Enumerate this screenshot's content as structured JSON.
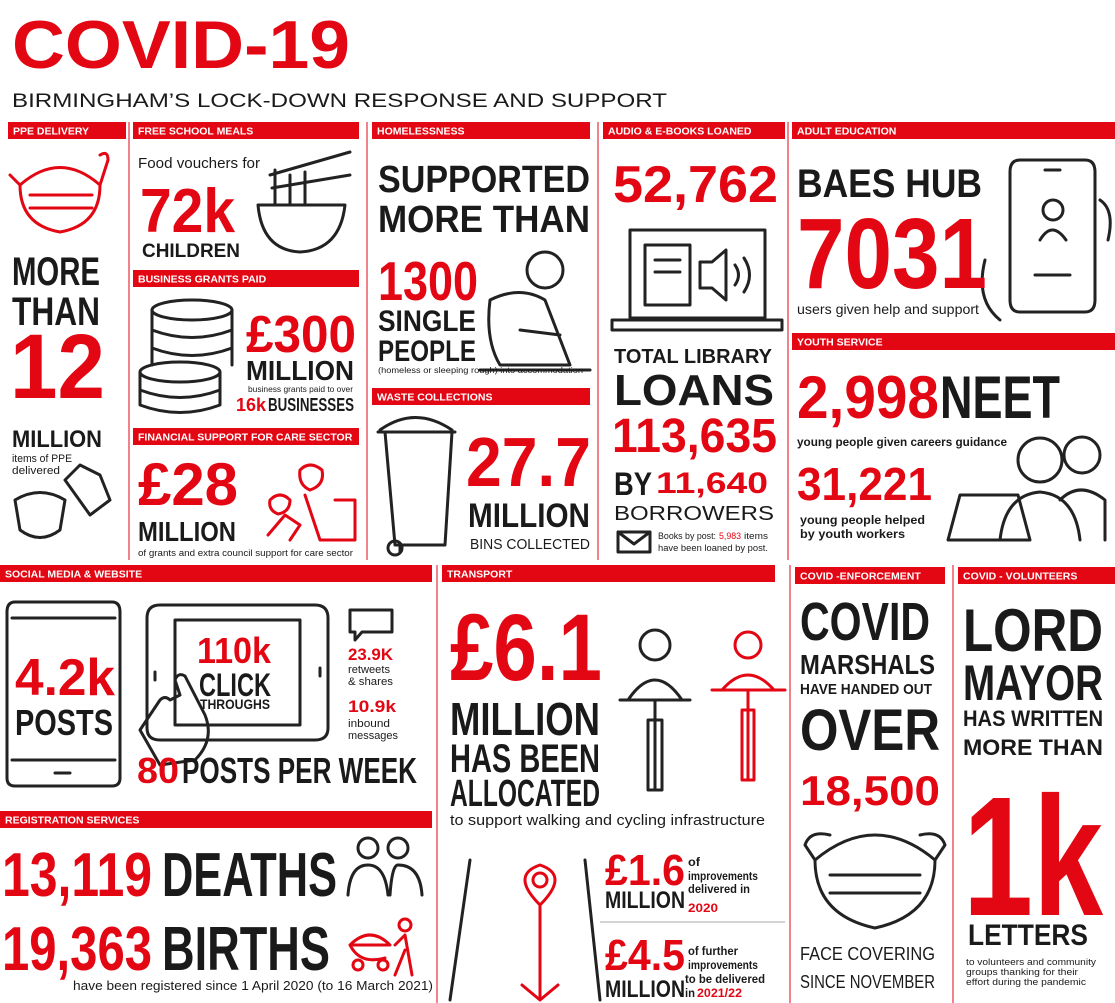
{
  "title": "COVID-19",
  "subtitle": "BIRMINGHAM’S LOCK-DOWN RESPONSE AND SUPPORT",
  "ppe": {
    "header": "PPE DELIVERY",
    "line1": "MORE",
    "line2": "THAN",
    "number": "12",
    "unit": "MILLION",
    "caption1": "items of PPE",
    "caption2": "delivered"
  },
  "school_meals": {
    "header": "FREE SCHOOL MEALS",
    "intro": "Food vouchers for",
    "number": "72k",
    "unit": "CHILDREN"
  },
  "business_grants": {
    "header": "BUSINESS GRANTS PAID",
    "number": "£300",
    "unit": "MILLION",
    "caption": "business grants paid to over",
    "count": "16k",
    "count_label": "BUSINESSES"
  },
  "care_sector": {
    "header": "FINANCIAL SUPPORT FOR CARE SECTOR",
    "number": "£28",
    "unit": "MILLION",
    "caption": "of grants and extra council support for care sector"
  },
  "homelessness": {
    "header": "HOMELESSNESS",
    "line1": "SUPPORTED",
    "line2": "MORE THAN",
    "number": "1300",
    "line3": "SINGLE",
    "line4": "PEOPLE",
    "caption": "(homeless or sleeping rough) into accommodation"
  },
  "waste": {
    "header": "WASTE COLLECTIONS",
    "number": "27.7",
    "unit": "MILLION",
    "caption": "BINS COLLECTED"
  },
  "library": {
    "header": "AUDIO & E-BOOKS LOANED",
    "number": "52,762",
    "label1": "TOTAL LIBRARY",
    "label2": "LOANS",
    "total": "113,635",
    "by": "BY",
    "borrowers": "11,640",
    "borrowers_label": "BORROWERS",
    "note1": "Books by post:",
    "note_number": "5,983",
    "note2": "items",
    "note3": "have been loaned by post."
  },
  "adult_education": {
    "header": "ADULT EDUCATION",
    "line1": "BAES HUB",
    "number": "7031",
    "caption": "users given help and support"
  },
  "youth": {
    "header": "YOUTH SERVICE",
    "number1": "2,998",
    "label1": "NEET",
    "caption1": "young people given careers guidance",
    "number2": "31,221",
    "caption2a": "young people helped",
    "caption2b": "by youth workers"
  },
  "social": {
    "header": "SOCIAL MEDIA & WEBSITE",
    "posts": "4.2k",
    "posts_label": "POSTS",
    "clicks": "110k",
    "clicks_label1": "CLICK",
    "clicks_label2": "THROUGHS",
    "retweets": "23.9K",
    "retweets_label1": "retweets",
    "retweets_label2": "& shares",
    "inbound": "10.9k",
    "inbound_label1": "inbound",
    "inbound_label2": "messages",
    "weekly": "80",
    "weekly_label": "POSTS PER WEEK"
  },
  "registration": {
    "header": "REGISTRATION SERVICES",
    "deaths": "13,119",
    "deaths_label": "DEATHS",
    "births": "19,363",
    "births_label": "BIRTHS",
    "caption": "have been registered since 1 April 2020 (to 16 March 2021)"
  },
  "transport": {
    "header": "TRANSPORT",
    "number": "£6.1",
    "line1": "MILLION",
    "line2": "HAS BEEN",
    "line3": "ALLOCATED",
    "caption": "to support walking and cycling infrastructure",
    "item1": {
      "number": "£1.6",
      "unit": "MILLION",
      "text1": "of",
      "text2": "improvements",
      "text3": "delivered in",
      "year": "2020"
    },
    "item2": {
      "number": "£4.5",
      "unit": "MILLION",
      "text1": "of further",
      "text2": "improvements",
      "text3": "to be delivered",
      "text4": "in",
      "year": "2021/22"
    }
  },
  "enforcement": {
    "header": "COVID -ENFORCEMENT",
    "line1": "COVID",
    "line2": "MARSHALS",
    "line3": "HAVE HANDED OUT",
    "line4": "OVER",
    "number": "18,500",
    "caption1": "FACE COVERING",
    "caption2": "SINCE NOVEMBER"
  },
  "volunteers": {
    "header": "COVID - VOLUNTEERS",
    "line1": "LORD",
    "line2": "MAYOR",
    "line3": "HAS WRITTEN",
    "line4": "MORE THAN",
    "number": "1k",
    "unit": "LETTERS",
    "caption1": "to volunteers and community",
    "caption2": "groups thanking for their",
    "caption3": "effort during the pandemic"
  }
}
